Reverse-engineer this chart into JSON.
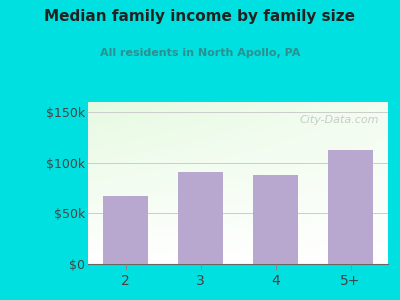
{
  "categories": [
    "2",
    "3",
    "4",
    "5+"
  ],
  "values": [
    67000,
    91000,
    88000,
    113000
  ],
  "bar_color": "#b8a8d0",
  "title": "Median family income by family size",
  "subtitle": "All residents in North Apollo, PA",
  "title_color": "#222222",
  "subtitle_color": "#2a9090",
  "outer_bg": "#00e0e0",
  "yticks": [
    0,
    50000,
    100000,
    150000
  ],
  "ytick_labels": [
    "$0",
    "$50k",
    "$100k",
    "$150k"
  ],
  "ylim": [
    0,
    160000
  ],
  "axis_label_color": "#444444",
  "watermark": "City-Data.com",
  "watermark_color": "#bbbbbb",
  "grid_color": "#cccccc"
}
